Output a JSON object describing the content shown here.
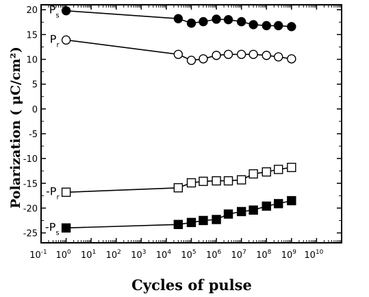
{
  "chart_data": {
    "type": "scatter",
    "xlabel": "Cycles of pulse",
    "ylabel": "Polarization ( μC/cm²)",
    "xscale": "log",
    "xlim_exponent": [
      -1,
      11
    ],
    "ylim": [
      -27,
      21
    ],
    "x_tick_exponents": [
      -1,
      0,
      1,
      2,
      3,
      4,
      5,
      6,
      7,
      8,
      9,
      10
    ],
    "y_ticks": [
      20,
      15,
      10,
      5,
      0,
      -5,
      -10,
      -15,
      -20,
      -25
    ],
    "series": [
      {
        "label": "P",
        "sub": "s",
        "prefix": "",
        "marker": "circle",
        "fill": "#000000",
        "x": [
          1,
          30000,
          100000,
          300000,
          1000000,
          3000000,
          10000000,
          30000000,
          100000000,
          300000000,
          1000000000
        ],
        "y": [
          19.8,
          18.2,
          17.3,
          17.6,
          18.1,
          18.0,
          17.6,
          17.0,
          16.8,
          16.8,
          16.6
        ]
      },
      {
        "label": "P",
        "sub": "r",
        "prefix": "",
        "marker": "circle",
        "fill": "#ffffff",
        "x": [
          1,
          30000,
          100000,
          300000,
          1000000,
          3000000,
          10000000,
          30000000,
          100000000,
          300000000,
          1000000000
        ],
        "y": [
          13.9,
          11.0,
          9.8,
          10.1,
          10.8,
          11.0,
          11.0,
          11.0,
          10.8,
          10.5,
          10.1
        ]
      },
      {
        "label": "P",
        "sub": "r",
        "prefix": "-",
        "marker": "square",
        "fill": "#ffffff",
        "x": [
          1,
          30000,
          100000,
          300000,
          1000000,
          3000000,
          10000000,
          30000000,
          100000000,
          300000000,
          1000000000
        ],
        "y": [
          -16.8,
          -15.9,
          -14.9,
          -14.6,
          -14.5,
          -14.5,
          -14.3,
          -13.1,
          -12.7,
          -12.2,
          -11.8
        ]
      },
      {
        "label": "P",
        "sub": "s",
        "prefix": "-",
        "marker": "square",
        "fill": "#000000",
        "x": [
          1,
          30000,
          100000,
          300000,
          1000000,
          3000000,
          10000000,
          30000000,
          100000000,
          300000000,
          1000000000
        ],
        "y": [
          -24.0,
          -23.3,
          -22.9,
          -22.5,
          -22.3,
          -21.2,
          -20.7,
          -20.4,
          -19.6,
          -19.1,
          -18.5
        ]
      }
    ]
  }
}
